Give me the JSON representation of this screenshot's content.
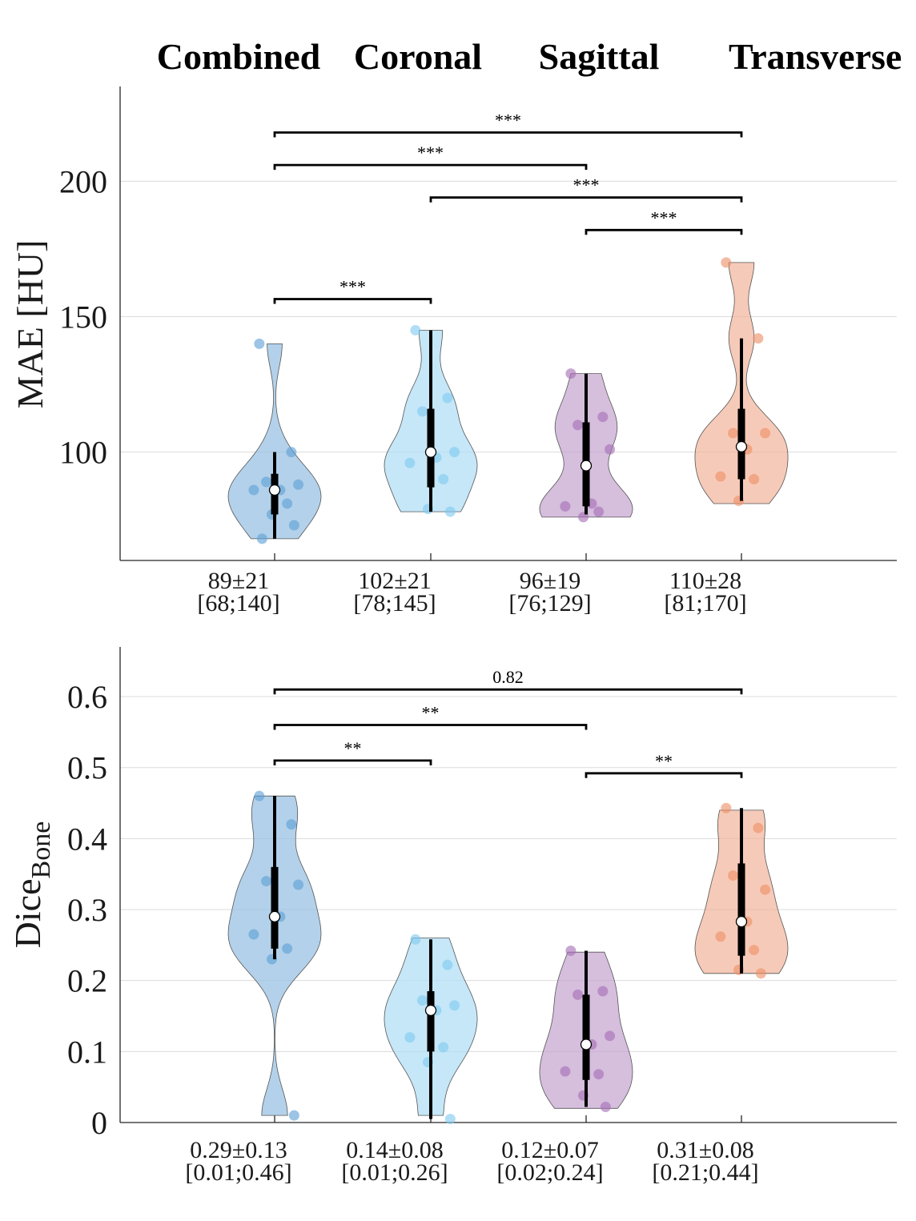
{
  "chart_data": [
    {
      "type": "violin",
      "groups": [
        "Combined",
        "Coronal",
        "Sagittal",
        "Transverse"
      ],
      "colors": [
        "#8fbbe0",
        "#a9dcf4",
        "#c29fcd",
        "#f1b196"
      ],
      "point_colors": [
        "#5e9fd6",
        "#7fcaf0",
        "#a670b6",
        "#ee8f68"
      ],
      "ylabel": "MAE [HU]",
      "ylim": [
        60,
        235
      ],
      "yticks": [
        100,
        150,
        200
      ],
      "series": [
        {
          "name": "Combined",
          "median": 86,
          "q1": 77,
          "q3": 92,
          "whisker_low": 68,
          "whisker_high": 100,
          "min": 68,
          "max": 140,
          "points": [
            140,
            100,
            89,
            88,
            86,
            86,
            81,
            77,
            73,
            68
          ],
          "stat_mean": "89±21",
          "stat_range": "[68;140]"
        },
        {
          "name": "Coronal",
          "median": 100,
          "q1": 87,
          "q3": 116,
          "whisker_low": 78,
          "whisker_high": 145,
          "min": 78,
          "max": 145,
          "points": [
            145,
            120,
            115,
            100,
            98,
            96,
            90,
            79,
            78
          ],
          "stat_mean": "102±21",
          "stat_range": "[78;145]"
        },
        {
          "name": "Sagittal",
          "median": 95,
          "q1": 80,
          "q3": 111,
          "whisker_low": 77,
          "whisker_high": 129,
          "min": 76,
          "max": 129,
          "points": [
            129,
            113,
            110,
            101,
            81,
            80,
            78,
            76
          ],
          "stat_mean": "96±19",
          "stat_range": "[76;129]"
        },
        {
          "name": "Transverse",
          "median": 102,
          "q1": 90,
          "q3": 116,
          "whisker_low": 82,
          "whisker_high": 142,
          "min": 81,
          "max": 170,
          "points": [
            170,
            142,
            107,
            107,
            101,
            91,
            90,
            82
          ],
          "stat_mean": "110±28",
          "stat_range": "[81;170]"
        }
      ],
      "significance": [
        {
          "from": 0,
          "to": 3,
          "y": 218,
          "label": "***"
        },
        {
          "from": 0,
          "to": 2,
          "y": 206,
          "label": "***"
        },
        {
          "from": 1,
          "to": 3,
          "y": 194,
          "label": "***"
        },
        {
          "from": 2,
          "to": 3,
          "y": 182,
          "label": "***"
        },
        {
          "from": 0,
          "to": 1,
          "y": 156.5,
          "label": "***"
        }
      ]
    },
    {
      "type": "violin",
      "groups": [
        "Combined",
        "Coronal",
        "Sagittal",
        "Transverse"
      ],
      "ylabel_main": "Dice",
      "ylabel_sub": "Bone",
      "ylim": [
        0,
        0.67
      ],
      "yticks": [
        0,
        0.1,
        0.2,
        0.3,
        0.4,
        0.5,
        0.6
      ],
      "ytick_labels": [
        "0",
        "0.1",
        "0.2",
        "0.3",
        "0.4",
        "0.5",
        "0.6"
      ],
      "series": [
        {
          "name": "Combined",
          "median": 0.29,
          "q1": 0.245,
          "q3": 0.36,
          "whisker_low": 0.23,
          "whisker_high": 0.46,
          "min": 0.01,
          "max": 0.46,
          "points": [
            0.46,
            0.42,
            0.34,
            0.335,
            0.29,
            0.265,
            0.245,
            0.23,
            0.01
          ],
          "stat_mean": "0.29±0.13",
          "stat_range": "[0.01;0.46]"
        },
        {
          "name": "Coronal",
          "median": 0.158,
          "q1": 0.1,
          "q3": 0.185,
          "whisker_low": 0.005,
          "whisker_high": 0.258,
          "min": 0.01,
          "max": 0.26,
          "points": [
            0.258,
            0.222,
            0.172,
            0.165,
            0.158,
            0.12,
            0.106,
            0.085,
            0.005
          ],
          "stat_mean": "0.14±0.08",
          "stat_range": "[0.01;0.26]"
        },
        {
          "name": "Sagittal",
          "median": 0.11,
          "q1": 0.06,
          "q3": 0.18,
          "whisker_low": 0.022,
          "whisker_high": 0.242,
          "min": 0.02,
          "max": 0.24,
          "points": [
            0.242,
            0.185,
            0.18,
            0.122,
            0.11,
            0.072,
            0.068,
            0.038,
            0.022
          ],
          "stat_mean": "0.12±0.07",
          "stat_range": "[0.02;0.24]"
        },
        {
          "name": "Transverse",
          "median": 0.283,
          "q1": 0.235,
          "q3": 0.365,
          "whisker_low": 0.21,
          "whisker_high": 0.443,
          "min": 0.21,
          "max": 0.44,
          "points": [
            0.443,
            0.415,
            0.348,
            0.328,
            0.283,
            0.262,
            0.243,
            0.215,
            0.21
          ],
          "stat_mean": "0.31±0.08",
          "stat_range": "[0.21;0.44]"
        }
      ],
      "significance": [
        {
          "from": 0,
          "to": 3,
          "y": 0.61,
          "label": "0.82"
        },
        {
          "from": 0,
          "to": 2,
          "y": 0.56,
          "label": "**"
        },
        {
          "from": 0,
          "to": 1,
          "y": 0.51,
          "label": "**"
        },
        {
          "from": 2,
          "to": 3,
          "y": 0.492,
          "label": "**"
        }
      ]
    }
  ]
}
